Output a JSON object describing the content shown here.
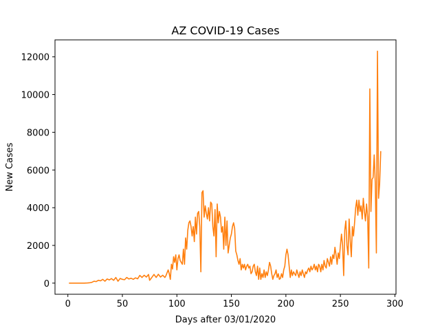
{
  "chart_data": {
    "type": "line",
    "title": "AZ COVID-19 Cases",
    "xlabel": "Days after 03/01/2020",
    "ylabel": "New Cases",
    "xlim": [
      -11.8,
      301
    ],
    "ylim": [
      -590,
      12900
    ],
    "xticks": [
      0,
      50,
      100,
      150,
      200,
      250,
      300
    ],
    "yticks": [
      0,
      2000,
      4000,
      6000,
      8000,
      10000,
      12000
    ],
    "grid": false,
    "line_color": "#ff7f0e",
    "series": [
      {
        "points": [
          [
            1,
            0
          ],
          [
            5,
            0
          ],
          [
            10,
            0
          ],
          [
            15,
            0
          ],
          [
            18,
            10
          ],
          [
            20,
            20
          ],
          [
            22,
            40
          ],
          [
            24,
            100
          ],
          [
            26,
            80
          ],
          [
            28,
            150
          ],
          [
            30,
            120
          ],
          [
            32,
            200
          ],
          [
            34,
            100
          ],
          [
            36,
            220
          ],
          [
            38,
            170
          ],
          [
            40,
            240
          ],
          [
            42,
            150
          ],
          [
            44,
            300
          ],
          [
            46,
            100
          ],
          [
            48,
            250
          ],
          [
            50,
            200
          ],
          [
            52,
            180
          ],
          [
            54,
            300
          ],
          [
            56,
            220
          ],
          [
            58,
            260
          ],
          [
            60,
            200
          ],
          [
            62,
            280
          ],
          [
            64,
            230
          ],
          [
            66,
            410
          ],
          [
            68,
            300
          ],
          [
            70,
            420
          ],
          [
            72,
            320
          ],
          [
            74,
            460
          ],
          [
            75,
            150
          ],
          [
            77,
            300
          ],
          [
            79,
            460
          ],
          [
            81,
            300
          ],
          [
            83,
            470
          ],
          [
            85,
            320
          ],
          [
            87,
            420
          ],
          [
            89,
            300
          ],
          [
            90,
            400
          ],
          [
            92,
            700
          ],
          [
            93,
            500
          ],
          [
            94,
            200
          ],
          [
            95,
            1000
          ],
          [
            96,
            750
          ],
          [
            97,
            1400
          ],
          [
            98,
            1100
          ],
          [
            99,
            1500
          ],
          [
            100,
            700
          ],
          [
            101,
            1300
          ],
          [
            102,
            1500
          ],
          [
            103,
            1200
          ],
          [
            105,
            1000
          ],
          [
            106,
            1800
          ],
          [
            107,
            1000
          ],
          [
            108,
            2400
          ],
          [
            109,
            1800
          ],
          [
            110,
            2800
          ],
          [
            111,
            3200
          ],
          [
            112,
            3300
          ],
          [
            113,
            3000
          ],
          [
            114,
            2500
          ],
          [
            115,
            3000
          ],
          [
            116,
            2200
          ],
          [
            117,
            3500
          ],
          [
            118,
            2600
          ],
          [
            119,
            3700
          ],
          [
            120,
            3800
          ],
          [
            121,
            3000
          ],
          [
            122,
            600
          ],
          [
            123,
            4800
          ],
          [
            124,
            4900
          ],
          [
            125,
            3500
          ],
          [
            126,
            4100
          ],
          [
            127,
            3700
          ],
          [
            128,
            3400
          ],
          [
            129,
            4000
          ],
          [
            130,
            3300
          ],
          [
            131,
            4300
          ],
          [
            132,
            4200
          ],
          [
            133,
            3000
          ],
          [
            134,
            2500
          ],
          [
            135,
            3900
          ],
          [
            136,
            1400
          ],
          [
            137,
            4200
          ],
          [
            138,
            3200
          ],
          [
            139,
            3800
          ],
          [
            140,
            3500
          ],
          [
            141,
            2700
          ],
          [
            142,
            3000
          ],
          [
            143,
            1800
          ],
          [
            144,
            3500
          ],
          [
            145,
            2000
          ],
          [
            146,
            3300
          ],
          [
            147,
            1600
          ],
          [
            148,
            2000
          ],
          [
            149,
            2400
          ],
          [
            150,
            2600
          ],
          [
            151,
            3000
          ],
          [
            152,
            3200
          ],
          [
            153,
            2900
          ],
          [
            154,
            1700
          ],
          [
            155,
            1500
          ],
          [
            156,
            1200
          ],
          [
            157,
            1000
          ],
          [
            158,
            1300
          ],
          [
            159,
            700
          ],
          [
            160,
            1000
          ],
          [
            161,
            800
          ],
          [
            162,
            1000
          ],
          [
            163,
            700
          ],
          [
            164,
            900
          ],
          [
            165,
            1000
          ],
          [
            166,
            800
          ],
          [
            167,
            900
          ],
          [
            168,
            500
          ],
          [
            169,
            600
          ],
          [
            170,
            900
          ],
          [
            171,
            1000
          ],
          [
            172,
            600
          ],
          [
            173,
            400
          ],
          [
            174,
            900
          ],
          [
            175,
            200
          ],
          [
            176,
            800
          ],
          [
            177,
            200
          ],
          [
            178,
            500
          ],
          [
            179,
            300
          ],
          [
            180,
            700
          ],
          [
            181,
            300
          ],
          [
            182,
            600
          ],
          [
            183,
            400
          ],
          [
            184,
            700
          ],
          [
            185,
            1100
          ],
          [
            186,
            900
          ],
          [
            187,
            500
          ],
          [
            188,
            200
          ],
          [
            189,
            400
          ],
          [
            190,
            500
          ],
          [
            191,
            700
          ],
          [
            192,
            300
          ],
          [
            193,
            500
          ],
          [
            194,
            200
          ],
          [
            195,
            250
          ],
          [
            196,
            500
          ],
          [
            197,
            300
          ],
          [
            198,
            700
          ],
          [
            199,
            900
          ],
          [
            200,
            1500
          ],
          [
            201,
            1800
          ],
          [
            202,
            1500
          ],
          [
            203,
            900
          ],
          [
            204,
            300
          ],
          [
            205,
            700
          ],
          [
            206,
            400
          ],
          [
            207,
            600
          ],
          [
            208,
            500
          ],
          [
            209,
            400
          ],
          [
            210,
            700
          ],
          [
            211,
            500
          ],
          [
            212,
            300
          ],
          [
            213,
            600
          ],
          [
            214,
            400
          ],
          [
            215,
            700
          ],
          [
            216,
            500
          ],
          [
            217,
            300
          ],
          [
            218,
            600
          ],
          [
            219,
            500
          ],
          [
            220,
            700
          ],
          [
            221,
            800
          ],
          [
            222,
            600
          ],
          [
            223,
            900
          ],
          [
            224,
            700
          ],
          [
            225,
            800
          ],
          [
            226,
            1000
          ],
          [
            227,
            700
          ],
          [
            228,
            900
          ],
          [
            229,
            600
          ],
          [
            230,
            1000
          ],
          [
            231,
            900
          ],
          [
            232,
            600
          ],
          [
            233,
            1000
          ],
          [
            234,
            700
          ],
          [
            235,
            1200
          ],
          [
            236,
            900
          ],
          [
            237,
            800
          ],
          [
            238,
            1300
          ],
          [
            239,
            1100
          ],
          [
            240,
            900
          ],
          [
            241,
            1400
          ],
          [
            242,
            1000
          ],
          [
            243,
            1500
          ],
          [
            244,
            1300
          ],
          [
            245,
            1900
          ],
          [
            246,
            1500
          ],
          [
            247,
            1000
          ],
          [
            248,
            1600
          ],
          [
            249,
            1300
          ],
          [
            250,
            2000
          ],
          [
            251,
            2600
          ],
          [
            252,
            2000
          ],
          [
            253,
            400
          ],
          [
            254,
            2800
          ],
          [
            255,
            3300
          ],
          [
            256,
            2000
          ],
          [
            257,
            1500
          ],
          [
            258,
            3400
          ],
          [
            259,
            2300
          ],
          [
            260,
            1400
          ],
          [
            261,
            3000
          ],
          [
            262,
            2500
          ],
          [
            263,
            3200
          ],
          [
            264,
            4000
          ],
          [
            265,
            4400
          ],
          [
            266,
            3600
          ],
          [
            267,
            4400
          ],
          [
            268,
            3800
          ],
          [
            269,
            4100
          ],
          [
            270,
            3400
          ],
          [
            271,
            4500
          ],
          [
            272,
            3800
          ],
          [
            273,
            3300
          ],
          [
            274,
            4200
          ],
          [
            275,
            3500
          ],
          [
            276,
            800
          ],
          [
            277,
            10300
          ],
          [
            278,
            3800
          ],
          [
            279,
            5500
          ],
          [
            280,
            5600
          ],
          [
            281,
            6800
          ],
          [
            282,
            5300
          ],
          [
            283,
            1600
          ],
          [
            284,
            12300
          ],
          [
            285,
            4500
          ],
          [
            286,
            5300
          ],
          [
            287,
            7000
          ]
        ]
      }
    ]
  }
}
